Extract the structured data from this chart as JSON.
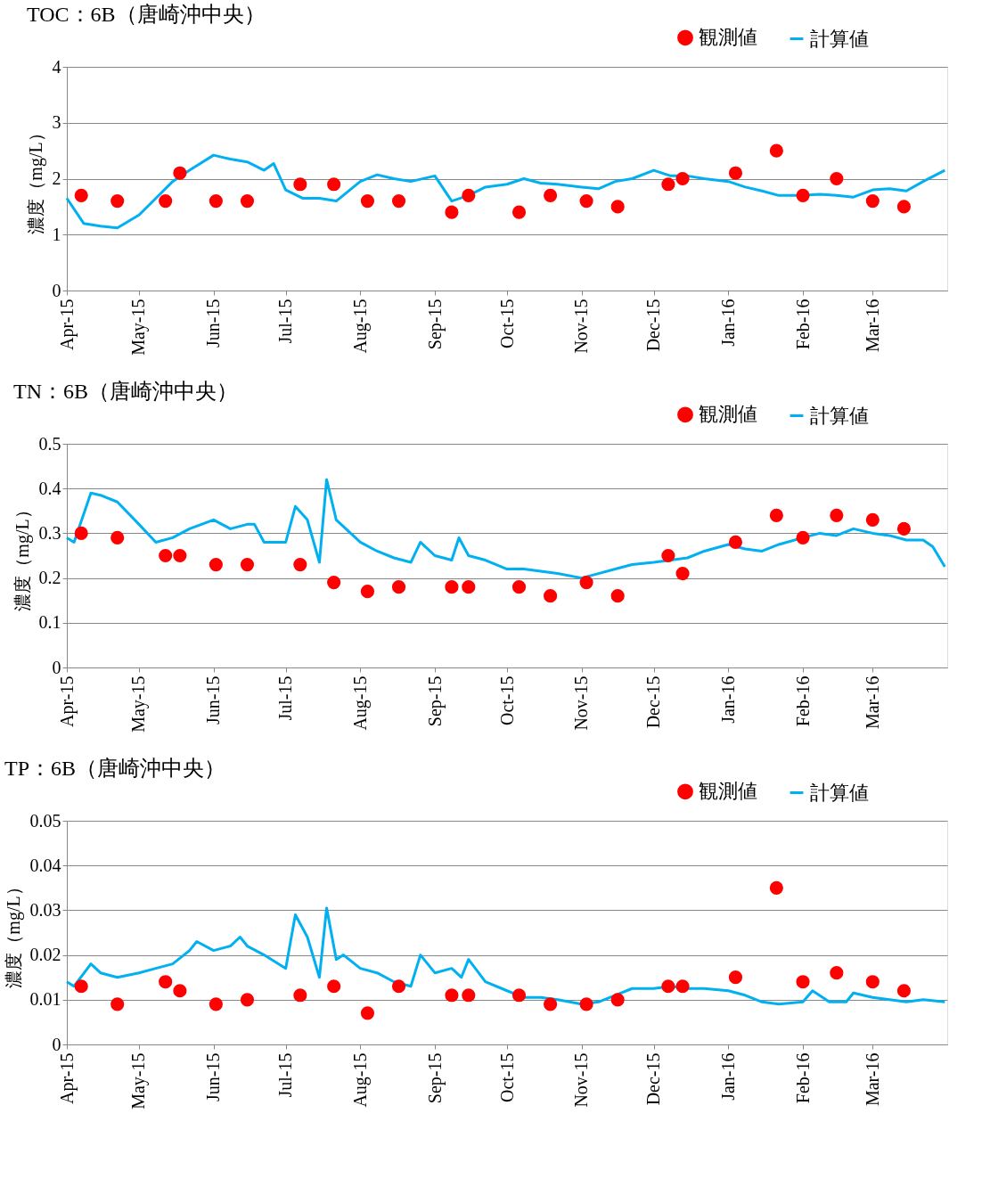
{
  "chart_data": [
    {
      "type": "line",
      "title": "TOC：6B（唐崎沖中央）",
      "ylabel": "濃度（mg/L）",
      "ylim": [
        0,
        4
      ],
      "yticks": [
        0,
        1,
        2,
        3,
        4
      ],
      "xlim": [
        "2015-04-01",
        "2016-04-01"
      ],
      "grid": "y",
      "legend": "top right",
      "xticks": [
        {
          "value": "2015-04-01",
          "label": "Apr-15"
        },
        {
          "value": "2015-05-01",
          "label": "May-15"
        },
        {
          "value": "2015-06-01",
          "label": "Jun-15"
        },
        {
          "value": "2015-07-01",
          "label": "Jul-15"
        },
        {
          "value": "2015-08-01",
          "label": "Aug-15"
        },
        {
          "value": "2015-09-01",
          "label": "Sep-15"
        },
        {
          "value": "2015-10-01",
          "label": "Oct-15"
        },
        {
          "value": "2015-11-01",
          "label": "Nov-15"
        },
        {
          "value": "2015-12-01",
          "label": "Dec-15"
        },
        {
          "value": "2016-01-01",
          "label": "Jan-16"
        },
        {
          "value": "2016-02-01",
          "label": "Feb-16"
        },
        {
          "value": "2016-03-01",
          "label": "Mar-16"
        }
      ],
      "series": [
        {
          "name": "観測値",
          "type": "scatter",
          "marker": "circle",
          "color": "#ff0000",
          "x": [
            "2015-04-07",
            "2015-04-22",
            "2015-05-12",
            "2015-05-18",
            "2015-06-02",
            "2015-06-15",
            "2015-07-07",
            "2015-07-21",
            "2015-08-04",
            "2015-08-17",
            "2015-09-08",
            "2015-09-15",
            "2015-10-06",
            "2015-10-19",
            "2015-11-03",
            "2015-11-16",
            "2015-12-07",
            "2015-12-13",
            "2016-01-04",
            "2016-01-21",
            "2016-02-01",
            "2016-02-15",
            "2016-03-01",
            "2016-03-14"
          ],
          "values": [
            1.7,
            1.6,
            1.6,
            2.1,
            1.6,
            1.6,
            1.9,
            1.9,
            1.6,
            1.6,
            1.4,
            1.7,
            1.4,
            1.7,
            1.6,
            1.5,
            1.9,
            2.0,
            2.1,
            2.5,
            1.7,
            2.0,
            1.6,
            1.5
          ]
        },
        {
          "name": "計算値",
          "type": "line",
          "marker": "none",
          "line_style": "solid",
          "color": "#00b0f0",
          "x": [
            "2015-04-01",
            "2015-04-08",
            "2015-04-15",
            "2015-04-22",
            "2015-05-01",
            "2015-05-08",
            "2015-05-15",
            "2015-05-22",
            "2015-06-01",
            "2015-06-08",
            "2015-06-15",
            "2015-06-22",
            "2015-06-26",
            "2015-07-01",
            "2015-07-08",
            "2015-07-15",
            "2015-07-22",
            "2015-08-01",
            "2015-08-08",
            "2015-08-15",
            "2015-08-22",
            "2015-09-01",
            "2015-09-08",
            "2015-09-15",
            "2015-09-22",
            "2015-10-01",
            "2015-10-08",
            "2015-10-15",
            "2015-10-22",
            "2015-11-01",
            "2015-11-08",
            "2015-11-15",
            "2015-11-22",
            "2015-12-01",
            "2015-12-08",
            "2015-12-15",
            "2015-12-22",
            "2016-01-01",
            "2016-01-08",
            "2016-01-15",
            "2016-01-22",
            "2016-02-01",
            "2016-02-08",
            "2016-02-15",
            "2016-02-22",
            "2016-03-01",
            "2016-03-08",
            "2016-03-15",
            "2016-03-22",
            "2016-03-31"
          ],
          "values": [
            1.65,
            1.2,
            1.15,
            1.12,
            1.35,
            1.65,
            1.95,
            2.15,
            2.42,
            2.35,
            2.3,
            2.15,
            2.27,
            1.8,
            1.65,
            1.65,
            1.6,
            1.95,
            2.07,
            2.0,
            1.95,
            2.05,
            1.6,
            1.7,
            1.85,
            1.9,
            2.0,
            1.92,
            1.9,
            1.85,
            1.82,
            1.95,
            2.0,
            2.15,
            2.05,
            2.05,
            2.0,
            1.95,
            1.85,
            1.78,
            1.7,
            1.7,
            1.72,
            1.7,
            1.67,
            1.8,
            1.82,
            1.78,
            1.95,
            2.15
          ]
        }
      ]
    },
    {
      "type": "line",
      "title": "TN：6B（唐崎沖中央）",
      "ylabel": "濃度（mg/L）",
      "ylim": [
        0,
        0.5
      ],
      "yticks": [
        0,
        0.1,
        0.2,
        0.3,
        0.4,
        0.5
      ],
      "xlim": [
        "2015-04-01",
        "2016-04-01"
      ],
      "grid": "y",
      "legend": "top right",
      "xticks": [
        {
          "value": "2015-04-01",
          "label": "Apr-15"
        },
        {
          "value": "2015-05-01",
          "label": "May-15"
        },
        {
          "value": "2015-06-01",
          "label": "Jun-15"
        },
        {
          "value": "2015-07-01",
          "label": "Jul-15"
        },
        {
          "value": "2015-08-01",
          "label": "Aug-15"
        },
        {
          "value": "2015-09-01",
          "label": "Sep-15"
        },
        {
          "value": "2015-10-01",
          "label": "Oct-15"
        },
        {
          "value": "2015-11-01",
          "label": "Nov-15"
        },
        {
          "value": "2015-12-01",
          "label": "Dec-15"
        },
        {
          "value": "2016-01-01",
          "label": "Jan-16"
        },
        {
          "value": "2016-02-01",
          "label": "Feb-16"
        },
        {
          "value": "2016-03-01",
          "label": "Mar-16"
        }
      ],
      "series": [
        {
          "name": "観測値",
          "type": "scatter",
          "marker": "circle",
          "color": "#ff0000",
          "x": [
            "2015-04-07",
            "2015-04-22",
            "2015-05-12",
            "2015-05-18",
            "2015-06-02",
            "2015-06-15",
            "2015-07-07",
            "2015-07-21",
            "2015-08-04",
            "2015-08-17",
            "2015-09-08",
            "2015-09-15",
            "2015-10-06",
            "2015-10-19",
            "2015-11-03",
            "2015-11-16",
            "2015-12-07",
            "2015-12-13",
            "2016-01-04",
            "2016-01-21",
            "2016-02-01",
            "2016-02-15",
            "2016-03-01",
            "2016-03-14"
          ],
          "values": [
            0.3,
            0.29,
            0.25,
            0.25,
            0.23,
            0.23,
            0.23,
            0.19,
            0.17,
            0.18,
            0.18,
            0.18,
            0.18,
            0.16,
            0.19,
            0.16,
            0.25,
            0.21,
            0.28,
            0.34,
            0.29,
            0.34,
            0.33,
            0.31
          ]
        },
        {
          "name": "計算値",
          "type": "line",
          "marker": "none",
          "line_style": "solid",
          "color": "#00b0f0",
          "x": [
            "2015-04-01",
            "2015-04-04",
            "2015-04-11",
            "2015-04-15",
            "2015-04-22",
            "2015-05-01",
            "2015-05-08",
            "2015-05-15",
            "2015-05-22",
            "2015-06-01",
            "2015-06-08",
            "2015-06-15",
            "2015-06-18",
            "2015-06-22",
            "2015-07-01",
            "2015-07-05",
            "2015-07-10",
            "2015-07-15",
            "2015-07-18",
            "2015-07-22",
            "2015-08-01",
            "2015-08-08",
            "2015-08-15",
            "2015-08-22",
            "2015-08-26",
            "2015-09-01",
            "2015-09-08",
            "2015-09-11",
            "2015-09-15",
            "2015-09-22",
            "2015-10-01",
            "2015-10-08",
            "2015-10-15",
            "2015-10-22",
            "2015-11-01",
            "2015-11-08",
            "2015-11-15",
            "2015-11-22",
            "2015-12-01",
            "2015-12-08",
            "2015-12-15",
            "2015-12-22",
            "2016-01-01",
            "2016-01-08",
            "2016-01-15",
            "2016-01-22",
            "2016-02-01",
            "2016-02-08",
            "2016-02-15",
            "2016-02-22",
            "2016-03-01",
            "2016-03-08",
            "2016-03-15",
            "2016-03-22",
            "2016-03-26",
            "2016-03-31"
          ],
          "values": [
            0.29,
            0.28,
            0.39,
            0.385,
            0.37,
            0.32,
            0.28,
            0.29,
            0.31,
            0.33,
            0.31,
            0.32,
            0.32,
            0.28,
            0.28,
            0.36,
            0.33,
            0.235,
            0.42,
            0.33,
            0.28,
            0.26,
            0.245,
            0.235,
            0.28,
            0.25,
            0.24,
            0.29,
            0.25,
            0.24,
            0.22,
            0.22,
            0.215,
            0.21,
            0.2,
            0.21,
            0.22,
            0.23,
            0.235,
            0.24,
            0.245,
            0.26,
            0.275,
            0.265,
            0.26,
            0.275,
            0.29,
            0.3,
            0.295,
            0.31,
            0.3,
            0.295,
            0.285,
            0.285,
            0.27,
            0.225
          ]
        }
      ]
    },
    {
      "type": "line",
      "title": "TP：6B（唐崎沖中央）",
      "ylabel": "濃度（mg/L）",
      "ylim": [
        0,
        0.05
      ],
      "yticks": [
        0,
        0.01,
        0.02,
        0.03,
        0.04,
        0.05
      ],
      "xlim": [
        "2015-04-01",
        "2016-04-01"
      ],
      "grid": "y",
      "legend": "top right",
      "xticks": [
        {
          "value": "2015-04-01",
          "label": "Apr-15"
        },
        {
          "value": "2015-05-01",
          "label": "May-15"
        },
        {
          "value": "2015-06-01",
          "label": "Jun-15"
        },
        {
          "value": "2015-07-01",
          "label": "Jul-15"
        },
        {
          "value": "2015-08-01",
          "label": "Aug-15"
        },
        {
          "value": "2015-09-01",
          "label": "Sep-15"
        },
        {
          "value": "2015-10-01",
          "label": "Oct-15"
        },
        {
          "value": "2015-11-01",
          "label": "Nov-15"
        },
        {
          "value": "2015-12-01",
          "label": "Dec-15"
        },
        {
          "value": "2016-01-01",
          "label": "Jan-16"
        },
        {
          "value": "2016-02-01",
          "label": "Feb-16"
        },
        {
          "value": "2016-03-01",
          "label": "Mar-16"
        }
      ],
      "series": [
        {
          "name": "観測値",
          "type": "scatter",
          "marker": "circle",
          "color": "#ff0000",
          "x": [
            "2015-04-07",
            "2015-04-22",
            "2015-05-12",
            "2015-05-18",
            "2015-06-02",
            "2015-06-15",
            "2015-07-07",
            "2015-07-21",
            "2015-08-04",
            "2015-08-17",
            "2015-09-08",
            "2015-09-15",
            "2015-10-06",
            "2015-10-19",
            "2015-11-03",
            "2015-11-16",
            "2015-12-07",
            "2015-12-13",
            "2016-01-04",
            "2016-01-21",
            "2016-02-01",
            "2016-02-15",
            "2016-03-01",
            "2016-03-14"
          ],
          "values": [
            0.013,
            0.009,
            0.014,
            0.012,
            0.009,
            0.01,
            0.011,
            0.013,
            0.007,
            0.013,
            0.011,
            0.011,
            0.011,
            0.009,
            0.009,
            0.01,
            0.013,
            0.013,
            0.015,
            0.035,
            0.014,
            0.016,
            0.014,
            0.012
          ]
        },
        {
          "name": "計算値",
          "type": "line",
          "marker": "none",
          "line_style": "solid",
          "color": "#00b0f0",
          "x": [
            "2015-04-01",
            "2015-04-04",
            "2015-04-11",
            "2015-04-15",
            "2015-04-22",
            "2015-05-01",
            "2015-05-08",
            "2015-05-15",
            "2015-05-22",
            "2015-05-25",
            "2015-06-01",
            "2015-06-08",
            "2015-06-12",
            "2015-06-15",
            "2015-06-22",
            "2015-07-01",
            "2015-07-05",
            "2015-07-10",
            "2015-07-15",
            "2015-07-18",
            "2015-07-22",
            "2015-07-25",
            "2015-08-01",
            "2015-08-08",
            "2015-08-15",
            "2015-08-22",
            "2015-08-26",
            "2015-09-01",
            "2015-09-08",
            "2015-09-12",
            "2015-09-15",
            "2015-09-22",
            "2015-10-01",
            "2015-10-08",
            "2015-10-15",
            "2015-10-22",
            "2015-11-01",
            "2015-11-08",
            "2015-11-15",
            "2015-11-22",
            "2015-12-01",
            "2015-12-08",
            "2015-12-15",
            "2015-12-22",
            "2016-01-01",
            "2016-01-08",
            "2016-01-15",
            "2016-01-22",
            "2016-02-01",
            "2016-02-05",
            "2016-02-12",
            "2016-02-19",
            "2016-02-22",
            "2016-03-01",
            "2016-03-08",
            "2016-03-15",
            "2016-03-22",
            "2016-03-31"
          ],
          "values": [
            0.014,
            0.013,
            0.018,
            0.016,
            0.015,
            0.016,
            0.017,
            0.018,
            0.021,
            0.023,
            0.021,
            0.022,
            0.024,
            0.022,
            0.02,
            0.017,
            0.029,
            0.024,
            0.015,
            0.0305,
            0.019,
            0.02,
            0.017,
            0.016,
            0.014,
            0.013,
            0.02,
            0.016,
            0.017,
            0.015,
            0.019,
            0.014,
            0.012,
            0.0105,
            0.0105,
            0.01,
            0.009,
            0.0095,
            0.011,
            0.0125,
            0.0125,
            0.013,
            0.0125,
            0.0125,
            0.012,
            0.011,
            0.0095,
            0.009,
            0.0095,
            0.012,
            0.0095,
            0.0095,
            0.0115,
            0.0105,
            0.01,
            0.0095,
            0.01,
            0.0095
          ]
        }
      ]
    }
  ]
}
